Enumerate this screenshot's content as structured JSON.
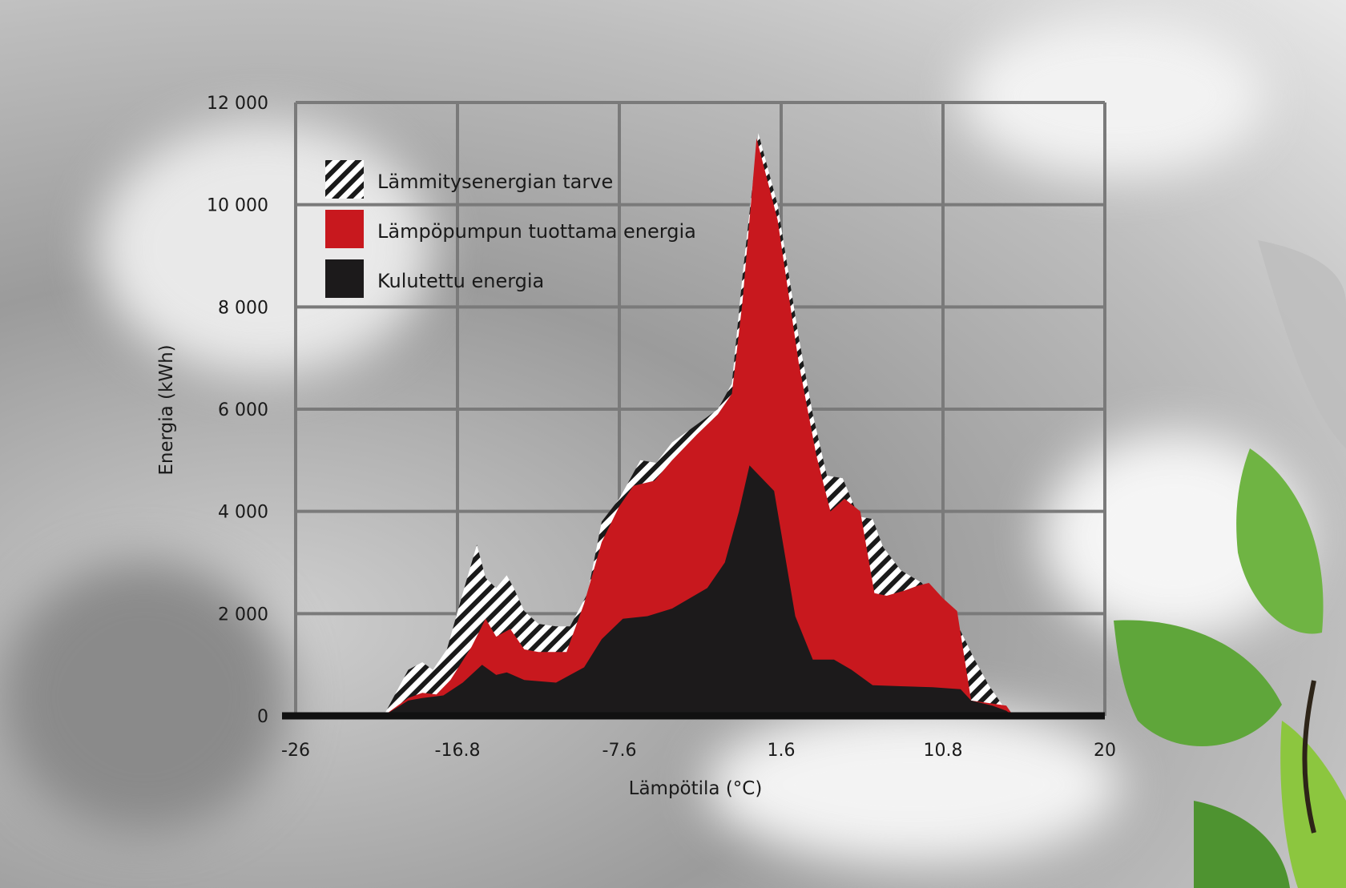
{
  "chart_data": {
    "type": "area",
    "title": "",
    "xlabel": "Lämpötila (°C)",
    "ylabel": "Energia (kWh)",
    "xlim": [
      -26,
      20
    ],
    "ylim": [
      0,
      12000
    ],
    "x_ticks": [
      -26,
      -16.8,
      -7.6,
      1.6,
      10.8,
      20
    ],
    "x_tick_labels": [
      "-26",
      "-16.8",
      "-7.6",
      "1.6",
      "10.8",
      "20"
    ],
    "y_ticks": [
      0,
      2000,
      4000,
      6000,
      8000,
      10000,
      12000
    ],
    "y_tick_labels": [
      "0",
      "2 000",
      "4 000",
      "6 000",
      "8 000",
      "10 000",
      "12 000"
    ],
    "grid": true,
    "legend_position": "top-left",
    "series": [
      {
        "name": "Lämmitysenergian tarve",
        "fill": "hatch",
        "color": "#1a1a1a",
        "points": [
          [
            -26,
            0
          ],
          [
            -21,
            0
          ],
          [
            -19.6,
            900
          ],
          [
            -18.8,
            1050
          ],
          [
            -18.2,
            900
          ],
          [
            -17.4,
            1300
          ],
          [
            -16.5,
            2400
          ],
          [
            -15.7,
            3350
          ],
          [
            -15.2,
            2700
          ],
          [
            -14.6,
            2500
          ],
          [
            -14,
            2750
          ],
          [
            -13.6,
            2500
          ],
          [
            -13,
            2050
          ],
          [
            -12.2,
            1800
          ],
          [
            -11.2,
            1750
          ],
          [
            -10.4,
            1750
          ],
          [
            -9.4,
            2400
          ],
          [
            -8.6,
            3800
          ],
          [
            -7.6,
            4250
          ],
          [
            -6.4,
            5000
          ],
          [
            -5.5,
            4950
          ],
          [
            -4.6,
            5350
          ],
          [
            -3.2,
            5700
          ],
          [
            -2,
            6000
          ],
          [
            -1.2,
            6500
          ],
          [
            -0.6,
            8600
          ],
          [
            0.3,
            11400
          ],
          [
            1.4,
            10000
          ],
          [
            2.6,
            7400
          ],
          [
            3.4,
            5900
          ],
          [
            4.2,
            4700
          ],
          [
            5.1,
            4650
          ],
          [
            6,
            3900
          ],
          [
            6.8,
            3850
          ],
          [
            7.4,
            3300
          ],
          [
            8.4,
            2850
          ],
          [
            9.6,
            2600
          ],
          [
            10.2,
            2250
          ],
          [
            11,
            1900
          ],
          [
            11.6,
            1800
          ],
          [
            12.6,
            1100
          ],
          [
            13.4,
            600
          ],
          [
            14.2,
            200
          ],
          [
            14.8,
            0
          ],
          [
            20,
            0
          ]
        ]
      },
      {
        "name": "Lämpöpumpun tuottama energia",
        "fill": "solid",
        "color": "#c8181e",
        "points": [
          [
            -26,
            0
          ],
          [
            -21,
            0
          ],
          [
            -19.6,
            350
          ],
          [
            -18.8,
            450
          ],
          [
            -18,
            420
          ],
          [
            -17.2,
            700
          ],
          [
            -16,
            1350
          ],
          [
            -15.2,
            1900
          ],
          [
            -14.6,
            1550
          ],
          [
            -13.8,
            1700
          ],
          [
            -13,
            1300
          ],
          [
            -12.2,
            1250
          ],
          [
            -11.4,
            1250
          ],
          [
            -10.6,
            1250
          ],
          [
            -9.6,
            2200
          ],
          [
            -8.6,
            3400
          ],
          [
            -7.6,
            4100
          ],
          [
            -6.8,
            4500
          ],
          [
            -5.6,
            4600
          ],
          [
            -4.6,
            5000
          ],
          [
            -3.2,
            5500
          ],
          [
            -2,
            5900
          ],
          [
            -1.2,
            6300
          ],
          [
            -0.6,
            8100
          ],
          [
            0.2,
            11300
          ],
          [
            1.4,
            9700
          ],
          [
            2.6,
            6900
          ],
          [
            3.6,
            5100
          ],
          [
            4.4,
            4000
          ],
          [
            5.2,
            4250
          ],
          [
            6.1,
            4000
          ],
          [
            6.9,
            2400
          ],
          [
            7.6,
            2350
          ],
          [
            8.6,
            2450
          ],
          [
            9.4,
            2550
          ],
          [
            10,
            2600
          ],
          [
            10.8,
            2300
          ],
          [
            11.6,
            2050
          ],
          [
            12.4,
            300
          ],
          [
            13.4,
            250
          ],
          [
            14.4,
            200
          ],
          [
            14.8,
            0
          ],
          [
            20,
            0
          ]
        ]
      },
      {
        "name": "Kulutettu energia",
        "fill": "solid",
        "color": "#1c1a1b",
        "points": [
          [
            -26,
            0
          ],
          [
            -21,
            0
          ],
          [
            -19.6,
            300
          ],
          [
            -18.8,
            350
          ],
          [
            -17.6,
            400
          ],
          [
            -16.5,
            650
          ],
          [
            -15.4,
            1000
          ],
          [
            -14.6,
            800
          ],
          [
            -14,
            850
          ],
          [
            -13,
            700
          ],
          [
            -11.2,
            650
          ],
          [
            -9.6,
            950
          ],
          [
            -8.6,
            1500
          ],
          [
            -7.4,
            1900
          ],
          [
            -6,
            1950
          ],
          [
            -4.6,
            2100
          ],
          [
            -2.6,
            2500
          ],
          [
            -1.6,
            3000
          ],
          [
            -0.8,
            4000
          ],
          [
            -0.2,
            4900
          ],
          [
            1.2,
            4400
          ],
          [
            2.4,
            1950
          ],
          [
            3.4,
            1100
          ],
          [
            4.6,
            1100
          ],
          [
            5.6,
            900
          ],
          [
            6.8,
            600
          ],
          [
            8.4,
            580
          ],
          [
            10.2,
            560
          ],
          [
            11.8,
            520
          ],
          [
            12.4,
            300
          ],
          [
            13.6,
            200
          ],
          [
            14.4,
            100
          ],
          [
            14.8,
            0
          ],
          [
            20,
            0
          ]
        ]
      }
    ]
  }
}
